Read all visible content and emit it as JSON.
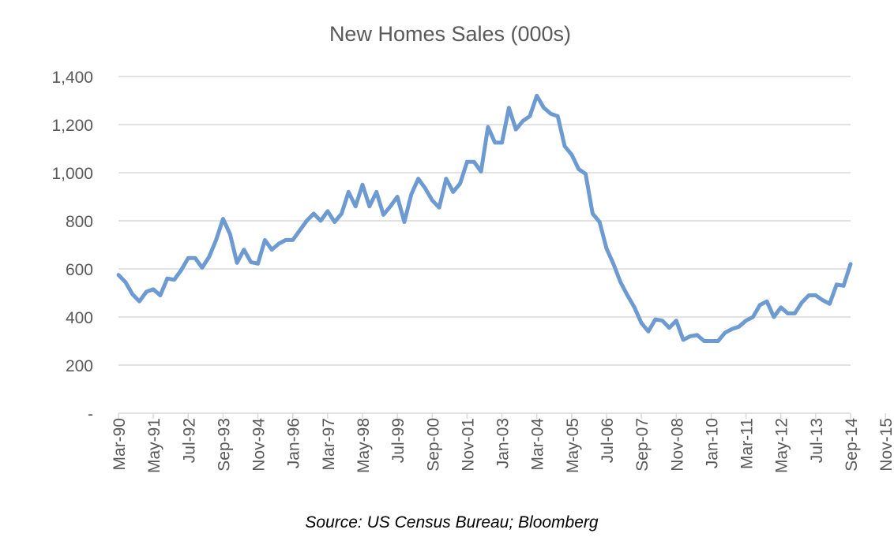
{
  "chart_data": {
    "type": "line",
    "title": "New Homes Sales (000s)",
    "source": "Source: US Census Bureau; Bloomberg",
    "xlabel": "",
    "ylabel": "",
    "ylim": [
      0,
      1400
    ],
    "y_ticks": [
      0,
      200,
      400,
      600,
      800,
      1000,
      1200,
      1400
    ],
    "y_tick_labels": [
      "-",
      "200",
      "400",
      "600",
      "800",
      "1,000",
      "1,200",
      "1,400"
    ],
    "x_tick_labels": [
      "Mar-90",
      "May-91",
      "Jul-92",
      "Sep-93",
      "Nov-94",
      "Jan-96",
      "Mar-97",
      "May-98",
      "Jul-99",
      "Sep-00",
      "Nov-01",
      "Jan-03",
      "Mar-04",
      "May-05",
      "Jul-06",
      "Sep-07",
      "Nov-08",
      "Jan-10",
      "Mar-11",
      "May-12",
      "Jul-13",
      "Sep-14",
      "Nov-15"
    ],
    "x_start": "Mar-90",
    "x_end": "Mar-16",
    "x_period": "quarterly",
    "grid": true,
    "legend": "none",
    "line_color": "#6d9bd1",
    "series": [
      {
        "values": [
          575,
          545,
          495,
          465,
          505,
          515,
          490,
          560,
          555,
          595,
          645,
          645,
          605,
          650,
          720,
          808,
          745,
          625,
          680,
          628,
          622,
          720,
          680,
          705,
          720,
          720,
          760,
          800,
          830,
          800,
          840,
          795,
          830,
          920,
          860,
          950,
          860,
          920,
          825,
          860,
          900,
          795,
          910,
          975,
          935,
          885,
          855,
          975,
          920,
          955,
          1045,
          1045,
          1005,
          1190,
          1125,
          1125,
          1270,
          1180,
          1215,
          1235,
          1320,
          1270,
          1245,
          1235,
          1110,
          1075,
          1015,
          995,
          830,
          795,
          685,
          620,
          545,
          490,
          440,
          375,
          340,
          390,
          385,
          355,
          385,
          305,
          320,
          325,
          300,
          300,
          300,
          335,
          350,
          360,
          385,
          400,
          450,
          465,
          400,
          440,
          415,
          415,
          460,
          490,
          490,
          470,
          455,
          535,
          530,
          620
        ]
      }
    ]
  }
}
